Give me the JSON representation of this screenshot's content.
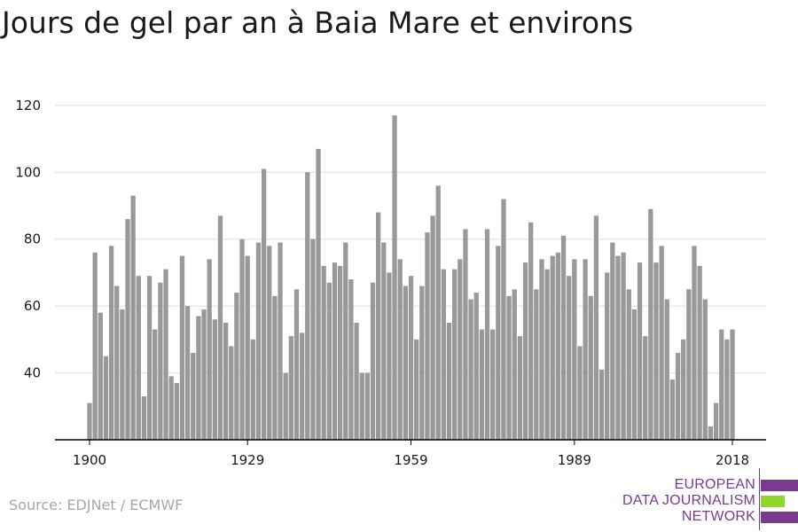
{
  "title": "Jours de gel par an à Baia Mare et environs",
  "source": "Source: EDJNet / ECMWF",
  "logo": {
    "lines": [
      "EUROPEAN",
      "DATA JOURNALISM",
      "NETWORK"
    ],
    "colors": {
      "purple": "#7a3b8f",
      "green": "#8fd62f"
    }
  },
  "colors": {
    "bar": "#999999",
    "grid": "#dddddd",
    "axis": "#000000",
    "text": "#1a1a1a",
    "source": "#a6a6a6"
  },
  "chart_data": {
    "type": "bar",
    "title": "Jours de gel par an à Baia Mare et environs",
    "xlabel": "",
    "ylabel": "",
    "x": [
      1900,
      1901,
      1902,
      1903,
      1904,
      1905,
      1906,
      1907,
      1908,
      1909,
      1910,
      1911,
      1912,
      1913,
      1914,
      1915,
      1916,
      1917,
      1918,
      1919,
      1920,
      1921,
      1922,
      1923,
      1924,
      1925,
      1926,
      1927,
      1928,
      1929,
      1930,
      1931,
      1932,
      1933,
      1934,
      1935,
      1936,
      1937,
      1938,
      1939,
      1940,
      1941,
      1942,
      1943,
      1944,
      1945,
      1946,
      1947,
      1948,
      1949,
      1950,
      1951,
      1952,
      1953,
      1954,
      1955,
      1956,
      1957,
      1958,
      1959,
      1960,
      1961,
      1962,
      1963,
      1964,
      1965,
      1966,
      1967,
      1968,
      1969,
      1970,
      1971,
      1972,
      1973,
      1974,
      1975,
      1976,
      1977,
      1978,
      1979,
      1980,
      1981,
      1982,
      1983,
      1984,
      1985,
      1986,
      1987,
      1988,
      1989,
      1990,
      1991,
      1992,
      1993,
      1994,
      1995,
      1996,
      1997,
      1998,
      1999,
      2000,
      2001,
      2002,
      2003,
      2004,
      2005,
      2006,
      2007,
      2008,
      2009,
      2010,
      2011,
      2012,
      2013,
      2014,
      2015,
      2016,
      2017,
      2018
    ],
    "values": [
      31,
      76,
      58,
      45,
      78,
      66,
      59,
      86,
      93,
      69,
      33,
      69,
      53,
      67,
      71,
      39,
      37,
      75,
      60,
      46,
      57,
      59,
      74,
      56,
      87,
      55,
      48,
      64,
      80,
      75,
      50,
      79,
      101,
      78,
      63,
      79,
      40,
      51,
      65,
      52,
      100,
      80,
      107,
      72,
      67,
      73,
      72,
      79,
      68,
      55,
      40,
      40,
      67,
      88,
      79,
      70,
      117,
      74,
      66,
      69,
      50,
      66,
      82,
      87,
      96,
      71,
      55,
      71,
      74,
      83,
      62,
      64,
      53,
      83,
      53,
      78,
      92,
      63,
      65,
      51,
      73,
      85,
      65,
      74,
      71,
      75,
      76,
      81,
      69,
      74,
      48,
      74,
      63,
      87,
      41,
      70,
      79,
      75,
      76,
      65,
      59,
      73,
      51,
      89,
      73,
      78,
      62,
      38,
      46,
      50,
      65,
      78,
      72,
      62,
      24,
      31,
      53,
      50,
      53
    ],
    "x_ticks": [
      "1900",
      "1929",
      "1959",
      "1989",
      "2018"
    ],
    "y_ticks": [
      "40",
      "60",
      "80",
      "100",
      "120"
    ],
    "ylim": [
      20,
      125
    ],
    "grid": true,
    "legend": "none"
  }
}
